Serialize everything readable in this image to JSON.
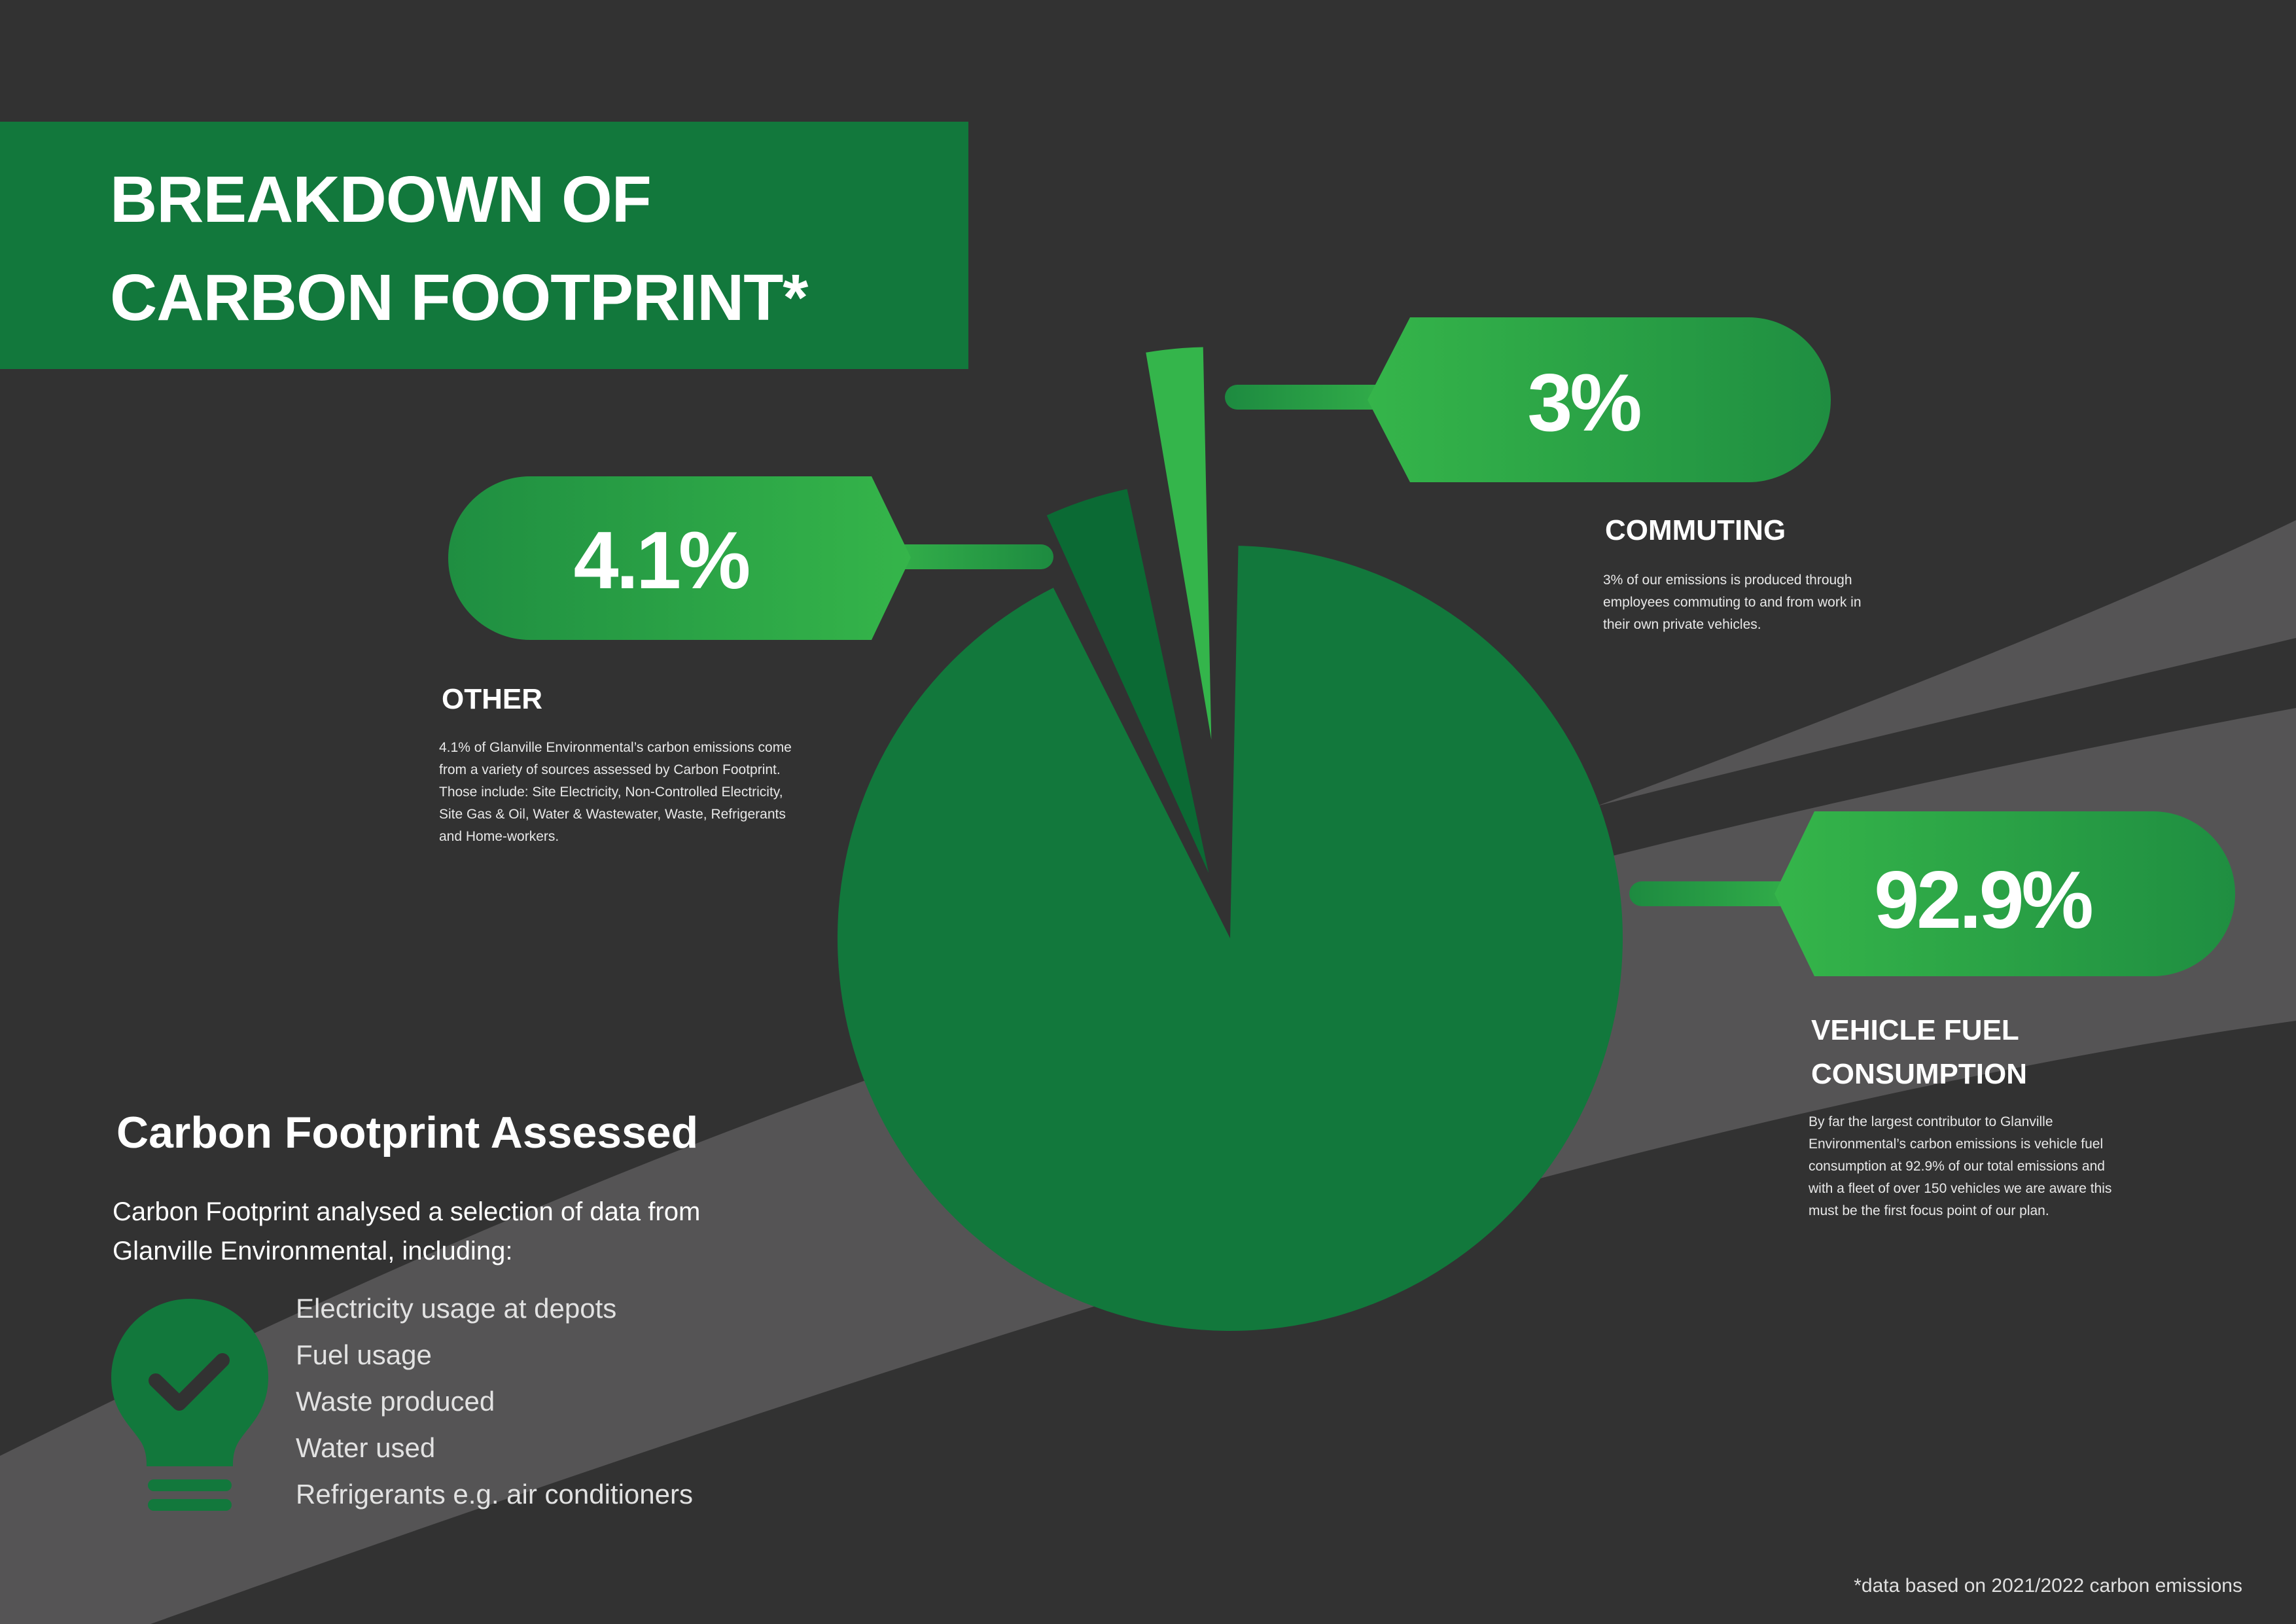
{
  "title": {
    "line1": "BREAKDOWN OF",
    "line2": "CARBON FOOTPRINT*"
  },
  "colors": {
    "background": "#323232",
    "band": "#555455",
    "dark_green": "#12783c",
    "mid_green": "#0b6a34",
    "light_green": "#34b54b"
  },
  "chart_data": {
    "type": "pie",
    "series": [
      {
        "label": "VEHICLE FUEL CONSUMPTION",
        "value": 92.9,
        "value_label": "92.9%",
        "color": "#12783c"
      },
      {
        "label": "OTHER",
        "value": 4.1,
        "value_label": "4.1%",
        "color": "#0b6a34"
      },
      {
        "label": "COMMUTING",
        "value": 3,
        "value_label": "3%",
        "color": "#34b54b"
      }
    ]
  },
  "callouts": {
    "commuting": {
      "value": "3%",
      "heading": "COMMUTING",
      "desc": [
        "3% of our emissions is produced through",
        "employees commuting to and from work in",
        "their own private vehicles."
      ]
    },
    "other": {
      "value": "4.1%",
      "heading": "OTHER",
      "desc": [
        "4.1% of Glanville Environmental’s carbon emissions come",
        "from a variety of sources assessed by Carbon Footprint.",
        "Those include: Site Electricity, Non-Controlled Electricity,",
        "Site Gas & Oil, Water & Wastewater, Waste, Refrigerants",
        "and Home-workers."
      ]
    },
    "vehicle": {
      "value": "92.9%",
      "heading": [
        "VEHICLE FUEL",
        "CONSUMPTION"
      ],
      "desc": [
        "By far the largest contributor to Glanville",
        "Environmental’s carbon emissions is vehicle fuel",
        "consumption at 92.9% of our total emissions and",
        "with a fleet of over 150 vehicles we are aware this",
        "must be the first focus point of our plan."
      ]
    }
  },
  "assessed": {
    "title": "Carbon Footprint Assessed",
    "intro": [
      "Carbon Footprint analysed a selection of data from",
      "Glanville Environmental, including:"
    ],
    "icon": "lightbulb-check-icon",
    "items": [
      "Electricity usage at depots",
      "Fuel usage",
      "Waste produced",
      "Water used",
      "Refrigerants e.g. air conditioners"
    ]
  },
  "footnote": "*data based on 2021/2022 carbon emissions"
}
